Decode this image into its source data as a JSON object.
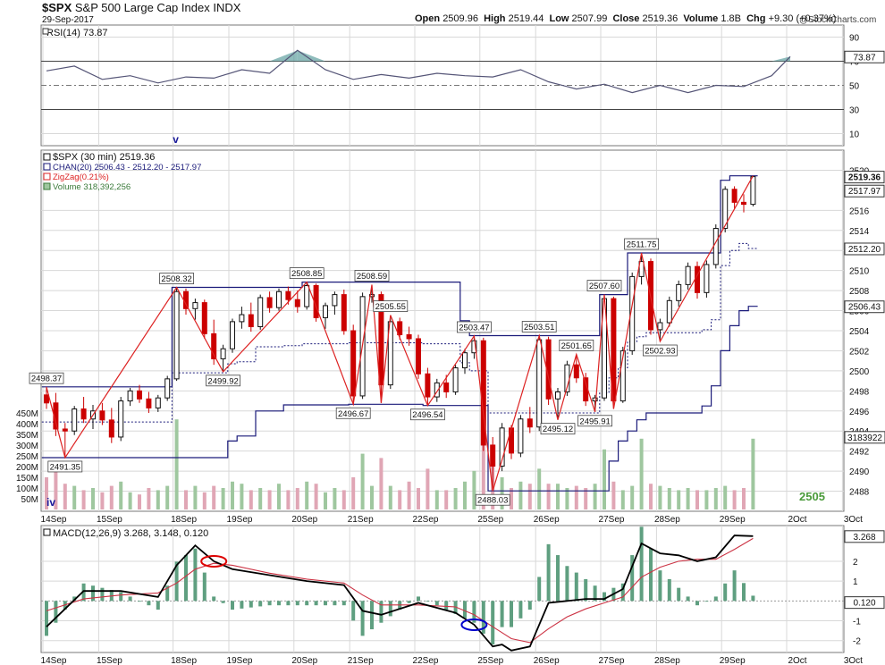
{
  "header": {
    "symbol": "$SPX",
    "name": "S&P 500 Large Cap Index",
    "exchange": "INDX",
    "date": "29-Sep-2017",
    "watermark": "@StockCharts.com",
    "open_label": "Open",
    "open": "2509.96",
    "high_label": "High",
    "high": "2519.44",
    "low_label": "Low",
    "low": "2507.99",
    "close_label": "Close",
    "close": "2519.36",
    "volume_label": "Volume",
    "volume": "1.8B",
    "chg_label": "Chg",
    "chg": "+9.30 (+0.37%)"
  },
  "colors": {
    "price_up": "#111111",
    "price_down": "#cc0000",
    "zigzag": "#dd2222",
    "channel": "#1a1a7a",
    "vol_up": "#9fc79f",
    "vol_down": "#e0a6b5",
    "macd": "#000000",
    "signal": "#cc3344",
    "hist": "#5f9f80",
    "rsi_line": "#555577",
    "rsi_fill": "#5f9f9f",
    "grid": "#d8d8d8",
    "circle_red": "#dd0000",
    "circle_blue": "#0000cc"
  },
  "chart_data": [
    {
      "type": "line",
      "panel": "rsi",
      "legend": "RSI(14) 73.87",
      "last_label": "73.87",
      "ylim": [
        0,
        100
      ],
      "yticks": [
        10,
        30,
        50,
        70,
        90
      ],
      "marker": "v",
      "x": [
        0,
        3,
        6,
        9,
        12,
        15,
        18,
        21,
        24,
        27,
        30,
        33,
        36,
        39,
        42,
        45,
        48,
        51,
        54,
        57,
        60,
        63,
        66,
        69,
        72,
        75,
        78,
        80
      ],
      "values": [
        62,
        66,
        55,
        58,
        52,
        57,
        56,
        63,
        60,
        79,
        63,
        55,
        59,
        56,
        60,
        58,
        57,
        63,
        53,
        47,
        51,
        44,
        50,
        44,
        50,
        49,
        58,
        73.87
      ]
    },
    {
      "type": "candlestick",
      "panel": "price",
      "legend": [
        "$SPX (30 min) 2519.36",
        "CHAN(20) 2506.43 - 2512.20 - 2517.97",
        "ZigZag(0.21%)",
        "Volume 318,392,256"
      ],
      "ylim": [
        2486,
        2522
      ],
      "yticks": [
        2488,
        2490,
        2492,
        2494,
        2496,
        2498,
        2500,
        2502,
        2504,
        2506,
        2508,
        2510,
        2512,
        2514,
        2516,
        2520
      ],
      "axis_boxes": [
        "2519.36",
        "2517.97",
        "2512.20",
        "2506.43"
      ],
      "volume_last_box": "3183922",
      "volume_ticks": [
        "450M",
        "400M",
        "350M",
        "300M",
        "250M",
        "200M",
        "150M",
        "100M",
        "50M"
      ],
      "wave_label": "iv",
      "corner_label": "2505",
      "x_labels": [
        "14Sep",
        "15Sep",
        "18Sep",
        "19Sep",
        "20Sep",
        "21Sep",
        "22Sep",
        "25Sep",
        "26Sep",
        "27Sep",
        "28Sep",
        "29Sep",
        "2Oct",
        "3Oct"
      ],
      "zigzag": [
        {
          "i": 0,
          "v": 2498.37,
          "label": "2498.37"
        },
        {
          "i": 2,
          "v": 2491.35,
          "label": "2491.35"
        },
        {
          "i": 14,
          "v": 2508.32,
          "label": "2508.32"
        },
        {
          "i": 19,
          "v": 2499.92,
          "label": "2499.92"
        },
        {
          "i": 28,
          "v": 2508.85,
          "label": "2508.85"
        },
        {
          "i": 33,
          "v": 2496.67,
          "label": "2496.67"
        },
        {
          "i": 35,
          "v": 2508.59,
          "label": "2508.59"
        },
        {
          "i": 36,
          "v": 2496.8,
          "label": ""
        },
        {
          "i": 37,
          "v": 2505.55,
          "label": "2505.55"
        },
        {
          "i": 41,
          "v": 2496.54,
          "label": "2496.54"
        },
        {
          "i": 46,
          "v": 2503.47,
          "label": "2503.47"
        },
        {
          "i": 48,
          "v": 2488.03,
          "label": "2488.03"
        },
        {
          "i": 53,
          "v": 2503.51,
          "label": "2503.51"
        },
        {
          "i": 55,
          "v": 2495.12,
          "label": "2495.12"
        },
        {
          "i": 57,
          "v": 2501.65,
          "label": "2501.65"
        },
        {
          "i": 59,
          "v": 2495.91,
          "label": "2495.91"
        },
        {
          "i": 60,
          "v": 2507.6,
          "label": "2507.60"
        },
        {
          "i": 61,
          "v": 2496.2,
          "label": ""
        },
        {
          "i": 64,
          "v": 2511.75,
          "label": "2511.75"
        },
        {
          "i": 66,
          "v": 2502.93,
          "label": "2502.93"
        },
        {
          "i": 76,
          "v": 2519.44,
          "label": ""
        }
      ],
      "channel_upper": [
        2498.4,
        2498.4,
        2498.4,
        2498.4,
        2498.4,
        2498.4,
        2498.4,
        2498.4,
        2498.4,
        2498.4,
        2498.4,
        2498.4,
        2498.4,
        2498.4,
        2508.32,
        2508.32,
        2508.32,
        2508.32,
        2508.32,
        2508.32,
        2508.32,
        2508.32,
        2508.32,
        2508.32,
        2508.32,
        2508.32,
        2508.32,
        2508.32,
        2508.85,
        2508.85,
        2508.85,
        2508.85,
        2508.85,
        2508.85,
        2508.85,
        2508.85,
        2508.85,
        2508.85,
        2508.85,
        2508.85,
        2508.85,
        2508.85,
        2508.85,
        2508.85,
        2508.85,
        2505.0,
        2503.51,
        2503.51,
        2503.51,
        2503.51,
        2503.51,
        2503.51,
        2503.51,
        2503.51,
        2503.51,
        2503.51,
        2503.51,
        2503.51,
        2503.51,
        2503.51,
        2507.6,
        2507.6,
        2507.6,
        2511.75,
        2511.75,
        2511.75,
        2511.75,
        2511.75,
        2511.75,
        2511.75,
        2511.75,
        2511.75,
        2511.75,
        2519.0,
        2519.44,
        2519.44,
        2519.44
      ],
      "channel_lower": [
        2491.35,
        2491.35,
        2491.35,
        2491.35,
        2491.35,
        2491.35,
        2491.35,
        2491.35,
        2491.35,
        2491.35,
        2491.35,
        2491.35,
        2491.35,
        2491.35,
        2491.35,
        2491.35,
        2491.35,
        2491.35,
        2491.35,
        2491.35,
        2493.0,
        2493.5,
        2493.5,
        2496.0,
        2496.0,
        2496.0,
        2496.6,
        2496.6,
        2496.6,
        2496.6,
        2496.6,
        2496.6,
        2496.6,
        2496.67,
        2496.67,
        2496.67,
        2496.67,
        2496.67,
        2496.67,
        2496.67,
        2496.67,
        2496.54,
        2496.54,
        2496.54,
        2496.54,
        2496.54,
        2496.54,
        2496.54,
        2488.03,
        2488.03,
        2488.03,
        2488.03,
        2488.03,
        2488.03,
        2488.03,
        2488.03,
        2488.03,
        2488.03,
        2488.03,
        2488.03,
        2488.03,
        2491.0,
        2493.0,
        2494.0,
        2495.12,
        2495.8,
        2495.8,
        2495.8,
        2495.8,
        2495.8,
        2495.8,
        2496.5,
        2498.5,
        2502.0,
        2504.5,
        2506.0,
        2506.43
      ],
      "channel_mid": [
        2494.9,
        2494.9,
        2494.9,
        2494.9,
        2494.9,
        2494.9,
        2494.9,
        2494.9,
        2494.9,
        2494.9,
        2494.9,
        2494.9,
        2494.9,
        2494.9,
        2499.8,
        2499.8,
        2499.8,
        2499.8,
        2499.8,
        2499.8,
        2500.7,
        2500.9,
        2500.9,
        2502.4,
        2502.4,
        2502.4,
        2502.5,
        2502.5,
        2502.7,
        2502.7,
        2502.7,
        2502.7,
        2502.7,
        2502.8,
        2502.8,
        2502.8,
        2502.8,
        2502.8,
        2502.8,
        2502.8,
        2502.8,
        2502.7,
        2502.7,
        2502.7,
        2502.7,
        2500.8,
        2500.0,
        2500.0,
        2495.8,
        2495.8,
        2495.8,
        2495.8,
        2495.8,
        2495.8,
        2495.8,
        2495.8,
        2495.8,
        2495.8,
        2495.8,
        2495.8,
        2497.8,
        2499.3,
        2500.3,
        2502.9,
        2503.4,
        2503.8,
        2503.8,
        2503.8,
        2503.8,
        2503.8,
        2503.8,
        2504.1,
        2505.1,
        2510.5,
        2512.0,
        2512.7,
        2512.2
      ],
      "candles": [
        [
          2497.6,
          2498.4,
          2496.2,
          2496.8
        ],
        [
          2496.8,
          2497.8,
          2493.5,
          2494.2
        ],
        [
          2494.2,
          2494.8,
          2491.35,
          2494.0
        ],
        [
          2494.0,
          2496.5,
          2493.6,
          2496.2
        ],
        [
          2496.2,
          2497.4,
          2494.8,
          2495.2
        ],
        [
          2495.2,
          2496.6,
          2494.2,
          2496.0
        ],
        [
          2496.0,
          2496.8,
          2494.6,
          2495.1
        ],
        [
          2495.1,
          2496.3,
          2492.8,
          2493.4
        ],
        [
          2493.4,
          2497.4,
          2493.0,
          2497.0
        ],
        [
          2497.0,
          2498.3,
          2496.5,
          2498.0
        ],
        [
          2498.0,
          2498.6,
          2496.8,
          2497.2
        ],
        [
          2497.2,
          2497.9,
          2495.8,
          2496.3
        ],
        [
          2496.3,
          2497.6,
          2495.9,
          2497.3
        ],
        [
          2497.3,
          2499.5,
          2497.0,
          2499.2
        ],
        [
          2499.2,
          2508.32,
          2499.0,
          2507.9
        ],
        [
          2507.9,
          2508.2,
          2505.6,
          2506.2
        ],
        [
          2506.2,
          2507.2,
          2505.1,
          2506.8
        ],
        [
          2506.8,
          2507.1,
          2503.2,
          2503.7
        ],
        [
          2503.7,
          2505.1,
          2500.6,
          2501.2
        ],
        [
          2501.2,
          2502.6,
          2499.92,
          2502.2
        ],
        [
          2502.2,
          2505.2,
          2501.8,
          2504.9
        ],
        [
          2504.9,
          2506.4,
          2504.2,
          2505.6
        ],
        [
          2505.6,
          2506.8,
          2503.9,
          2504.4
        ],
        [
          2504.4,
          2507.6,
          2504.1,
          2507.3
        ],
        [
          2507.3,
          2507.9,
          2505.8,
          2506.3
        ],
        [
          2506.3,
          2508.2,
          2506.0,
          2507.9
        ],
        [
          2507.9,
          2508.4,
          2506.6,
          2507.1
        ],
        [
          2507.1,
          2508.0,
          2505.8,
          2506.4
        ],
        [
          2506.4,
          2508.85,
          2506.1,
          2508.5
        ],
        [
          2508.5,
          2508.7,
          2504.9,
          2505.3
        ],
        [
          2505.3,
          2506.8,
          2504.2,
          2506.5
        ],
        [
          2506.5,
          2507.9,
          2505.6,
          2507.6
        ],
        [
          2507.6,
          2508.1,
          2503.6,
          2504.0
        ],
        [
          2504.0,
          2504.6,
          2496.67,
          2497.5
        ],
        [
          2497.5,
          2507.8,
          2497.2,
          2507.4
        ],
        [
          2507.4,
          2508.59,
          2506.8,
          2507.6
        ],
        [
          2507.6,
          2507.9,
          2496.8,
          2498.6
        ],
        [
          2498.6,
          2505.55,
          2498.2,
          2504.9
        ],
        [
          2504.9,
          2505.3,
          2503.1,
          2503.6
        ],
        [
          2503.6,
          2504.4,
          2502.5,
          2503.2
        ],
        [
          2503.2,
          2503.6,
          2499.2,
          2499.7
        ],
        [
          2499.7,
          2500.3,
          2496.54,
          2497.4
        ],
        [
          2497.4,
          2499.2,
          2496.9,
          2498.8
        ],
        [
          2498.8,
          2499.6,
          2497.3,
          2497.9
        ],
        [
          2497.9,
          2500.6,
          2497.6,
          2500.3
        ],
        [
          2500.3,
          2502.2,
          2499.7,
          2501.8
        ],
        [
          2501.8,
          2503.47,
          2501.2,
          2503.0
        ],
        [
          2503.0,
          2503.3,
          2492.0,
          2492.6
        ],
        [
          2492.6,
          2493.4,
          2488.03,
          2490.5
        ],
        [
          2490.5,
          2494.8,
          2490.0,
          2494.3
        ],
        [
          2494.3,
          2494.6,
          2491.2,
          2491.8
        ],
        [
          2491.8,
          2495.6,
          2491.4,
          2495.2
        ],
        [
          2495.2,
          2496.4,
          2493.8,
          2494.4
        ],
        [
          2494.4,
          2503.51,
          2494.0,
          2503.1
        ],
        [
          2503.1,
          2503.4,
          2496.6,
          2497.2
        ],
        [
          2497.2,
          2498.3,
          2495.12,
          2497.9
        ],
        [
          2497.9,
          2501.0,
          2497.5,
          2500.6
        ],
        [
          2500.6,
          2501.65,
          2498.8,
          2499.3
        ],
        [
          2499.3,
          2499.8,
          2496.5,
          2497.0
        ],
        [
          2497.0,
          2497.6,
          2495.91,
          2497.3
        ],
        [
          2497.3,
          2507.6,
          2497.0,
          2507.2
        ],
        [
          2507.2,
          2507.4,
          2496.2,
          2497.0
        ],
        [
          2497.0,
          2502.4,
          2496.8,
          2502.0
        ],
        [
          2502.0,
          2509.8,
          2501.6,
          2509.4
        ],
        [
          2509.4,
          2511.75,
          2508.6,
          2510.9
        ],
        [
          2510.9,
          2511.2,
          2503.6,
          2504.1
        ],
        [
          2504.1,
          2505.2,
          2502.93,
          2504.8
        ],
        [
          2504.8,
          2507.4,
          2504.4,
          2507.0
        ],
        [
          2507.0,
          2509.0,
          2506.4,
          2508.6
        ],
        [
          2508.6,
          2510.8,
          2508.1,
          2510.4
        ],
        [
          2510.4,
          2510.9,
          2507.2,
          2507.8
        ],
        [
          2507.8,
          2511.0,
          2507.3,
          2510.6
        ],
        [
          2510.6,
          2514.6,
          2510.2,
          2514.2
        ],
        [
          2514.2,
          2518.4,
          2513.8,
          2518.1
        ],
        [
          2518.1,
          2518.4,
          2516.1,
          2516.8
        ],
        [
          2516.8,
          2517.6,
          2515.8,
          2516.6
        ],
        [
          2516.6,
          2519.44,
          2516.4,
          2519.36
        ]
      ],
      "volume": [
        150,
        200,
        120,
        110,
        90,
        100,
        80,
        110,
        130,
        80,
        70,
        100,
        90,
        110,
        420,
        90,
        110,
        80,
        110,
        100,
        130,
        120,
        90,
        100,
        90,
        120,
        90,
        100,
        130,
        120,
        80,
        100,
        90,
        150,
        260,
        110,
        240,
        110,
        90,
        130,
        100,
        190,
        90,
        90,
        100,
        130,
        180,
        330,
        260,
        150,
        100,
        130,
        120,
        190,
        120,
        120,
        100,
        110,
        100,
        120,
        280,
        130,
        90,
        110,
        330,
        120,
        110,
        100,
        90,
        100,
        90,
        90,
        100,
        110,
        90,
        100,
        330
      ]
    },
    {
      "type": "line",
      "panel": "macd",
      "legend": "MACD(12,26,9) 3.268, 3.148, 0.120",
      "last_box": "3.268",
      "hist_box": "0.120",
      "ylim": [
        -2.6,
        3.8
      ],
      "yticks": [
        -2,
        -1,
        0,
        1,
        2
      ],
      "x": [
        0,
        4,
        8,
        12,
        14,
        16,
        18,
        20,
        24,
        28,
        32,
        34,
        36,
        40,
        44,
        46,
        48,
        49,
        50,
        52,
        54,
        56,
        58,
        60,
        62,
        64,
        66,
        68,
        70,
        72,
        74,
        76
      ],
      "macd": [
        -1.3,
        0.5,
        0.5,
        0.2,
        1.8,
        2.8,
        2.0,
        1.6,
        1.3,
        1.0,
        0.8,
        -0.5,
        -0.7,
        -0.1,
        -0.6,
        -1.2,
        -2.3,
        -2.2,
        -2.5,
        -2.3,
        -0.1,
        0.0,
        0.1,
        0.1,
        0.6,
        2.9,
        2.4,
        2.3,
        2.0,
        2.2,
        3.3,
        3.27
      ],
      "signal": [
        -0.5,
        0.1,
        0.3,
        0.4,
        0.9,
        1.6,
        1.9,
        1.8,
        1.4,
        1.1,
        0.9,
        0.3,
        -0.2,
        -0.2,
        -0.3,
        -0.7,
        -1.3,
        -1.6,
        -1.9,
        -2.1,
        -1.4,
        -0.8,
        -0.4,
        -0.1,
        0.2,
        1.2,
        1.7,
        2.0,
        2.1,
        2.1,
        2.6,
        3.15
      ],
      "markers": [
        {
          "i": 18,
          "v": 2.0,
          "color": "red"
        },
        {
          "i": 46,
          "v": -1.2,
          "color": "blue"
        }
      ]
    }
  ]
}
